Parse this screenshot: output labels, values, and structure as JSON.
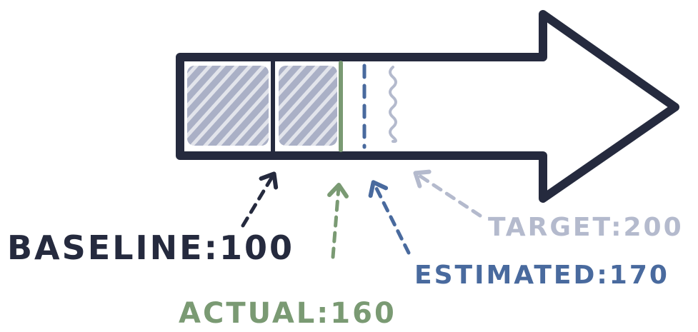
{
  "diagram": {
    "colors": {
      "outline": "#252a3e",
      "hatch": "#aab0c6",
      "baseline": "#252a3e",
      "actual": "#7a9a73",
      "estimated": "#496a9e",
      "target": "#b4bacd"
    },
    "labels": {
      "baseline": "BASELINE:100",
      "actual": "ACTUAL:160",
      "estimated": "ESTIMATED:170",
      "target": "TARGET:200"
    },
    "values": {
      "baseline": 100,
      "actual": 160,
      "estimated": 170,
      "target": 200
    }
  }
}
